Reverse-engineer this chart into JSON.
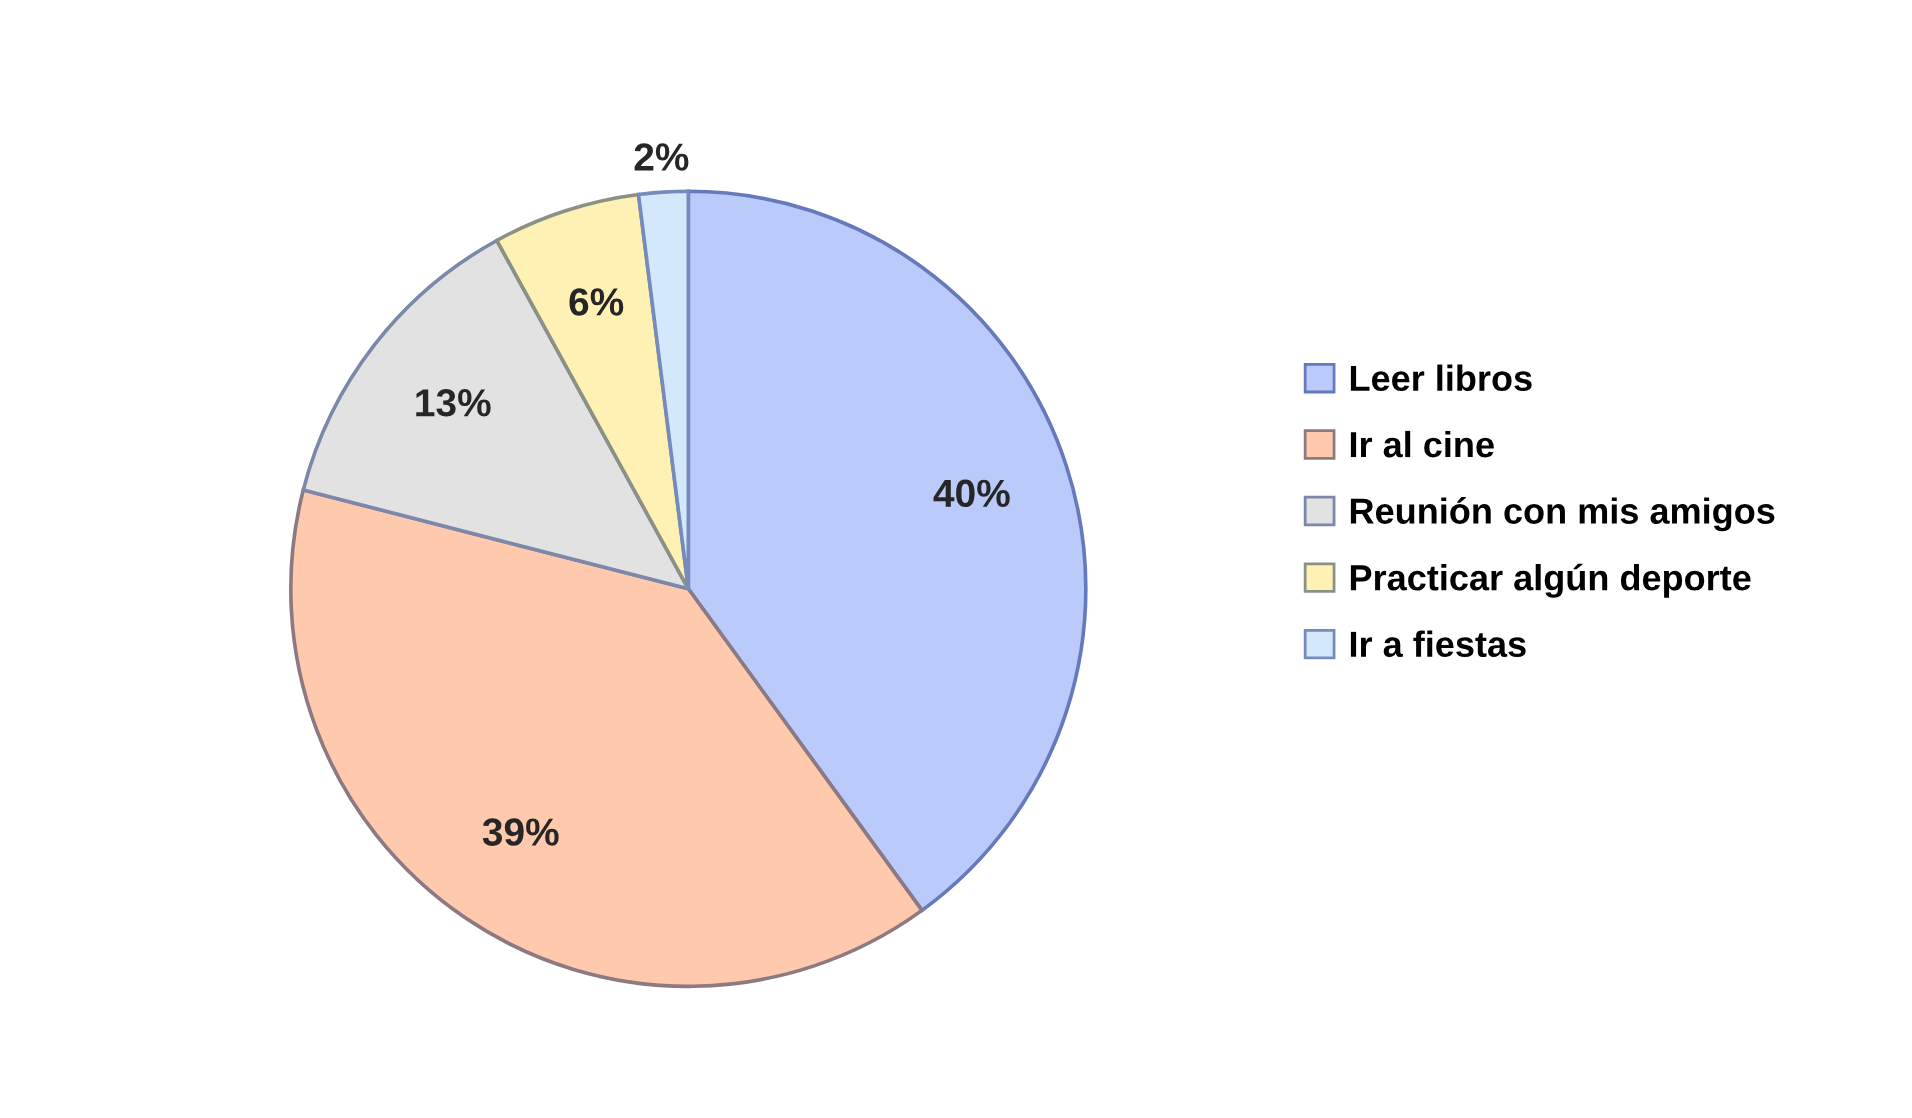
{
  "chart_data": {
    "type": "pie",
    "categories": [
      "Leer libros",
      "Ir al cine",
      "Reunión con mis amigos",
      "Practicar algún deporte",
      "Ir a fiestas"
    ],
    "values": [
      40,
      39,
      13,
      6,
      2
    ],
    "colors": [
      "#b9cafb",
      "#ffc9ae",
      "#e2e2e2",
      "#fff1b3",
      "#d3e8fb"
    ],
    "value_labels": [
      "40%",
      "39%",
      "13%",
      "6%",
      "2%"
    ],
    "legend": "right"
  }
}
